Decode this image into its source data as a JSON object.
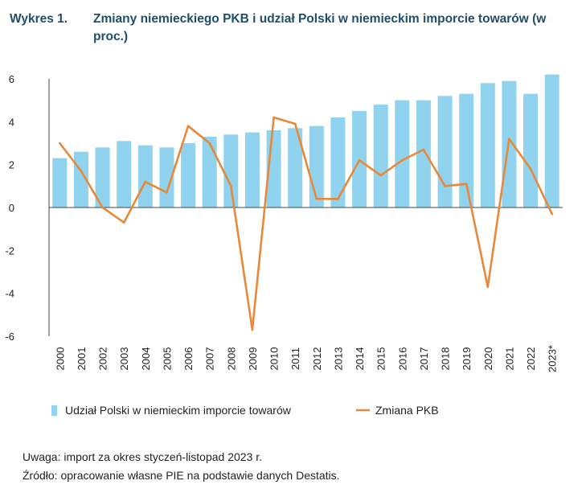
{
  "header": {
    "label": "Wykres 1.",
    "title": "Zmiany niemieckiego PKB i udział Polski w niemieckim imporcie towarów (w proc.)"
  },
  "colors": {
    "bar": "#8fd3ee",
    "line": "#e8893a",
    "title": "#1f4e6b",
    "axis": "#444444"
  },
  "chart_data": {
    "type": "bar",
    "title": "Zmiany niemieckiego PKB i udział Polski w niemieckim imporcie towarów (w proc.)",
    "categories": [
      "2000",
      "2001",
      "2002",
      "2003",
      "2004",
      "2005",
      "2006",
      "2007",
      "2008",
      "2009",
      "2010",
      "2011",
      "2012",
      "2013",
      "2014",
      "2015",
      "2016",
      "2017",
      "2018",
      "2019",
      "2020",
      "2021",
      "2022",
      "2023*"
    ],
    "series": [
      {
        "name": "Udział Polski w niemieckim imporcie towarów",
        "type": "bar",
        "values": [
          2.3,
          2.6,
          2.8,
          3.1,
          2.9,
          2.8,
          3.0,
          3.3,
          3.4,
          3.5,
          3.6,
          3.7,
          3.8,
          4.2,
          4.5,
          4.8,
          5.0,
          5.0,
          5.2,
          5.3,
          5.8,
          5.9,
          5.3,
          6.2
        ]
      },
      {
        "name": "Zmiana PKB",
        "type": "line",
        "values": [
          3.0,
          1.7,
          0.0,
          -0.7,
          1.2,
          0.7,
          3.8,
          3.0,
          1.0,
          -5.7,
          4.2,
          3.9,
          0.4,
          0.4,
          2.2,
          1.5,
          2.2,
          2.7,
          1.0,
          1.1,
          -3.7,
          3.2,
          1.8,
          -0.3
        ]
      }
    ],
    "yticks": [
      "6",
      "4",
      "2",
      "0",
      "-2",
      "-4",
      "-6"
    ],
    "ylim": [
      -6,
      6
    ],
    "xlabel": "",
    "ylabel": "",
    "legend": [
      "Udział Polski w niemieckim imporcie towarów",
      "Zmiana PKB"
    ],
    "legend_position": "bottom"
  },
  "notes": {
    "uwaga": "Uwaga: import za okres styczeń-listopad 2023 r.",
    "zrodlo": "Źródło: opracowanie własne PIE na podstawie danych Destatis."
  }
}
